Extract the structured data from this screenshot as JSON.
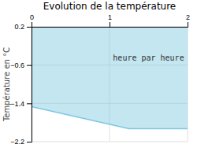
{
  "chart_data": {
    "type": "area",
    "title": "Evolution de la température",
    "ylabel": "Température en °C",
    "x": [
      0,
      1.25,
      2.0
    ],
    "series": [
      {
        "color": "#7cc8e0",
        "values": [
          -1.47,
          -1.93,
          -1.93
        ]
      }
    ],
    "xlim": [
      0,
      2
    ],
    "ylim": [
      -2.2,
      0.2
    ],
    "xticks": [
      0,
      1,
      2
    ],
    "yticks": [
      0.2,
      {
        "value": -0.6,
        "label": "−0.6"
      },
      {
        "value": -1.4,
        "label": "−1.4"
      },
      {
        "value": -2.2,
        "label": "−2.2"
      }
    ],
    "grid": true,
    "annotations": [
      {
        "text": "heure par heure",
        "x": 1.5,
        "y": -0.45
      }
    ]
  }
}
